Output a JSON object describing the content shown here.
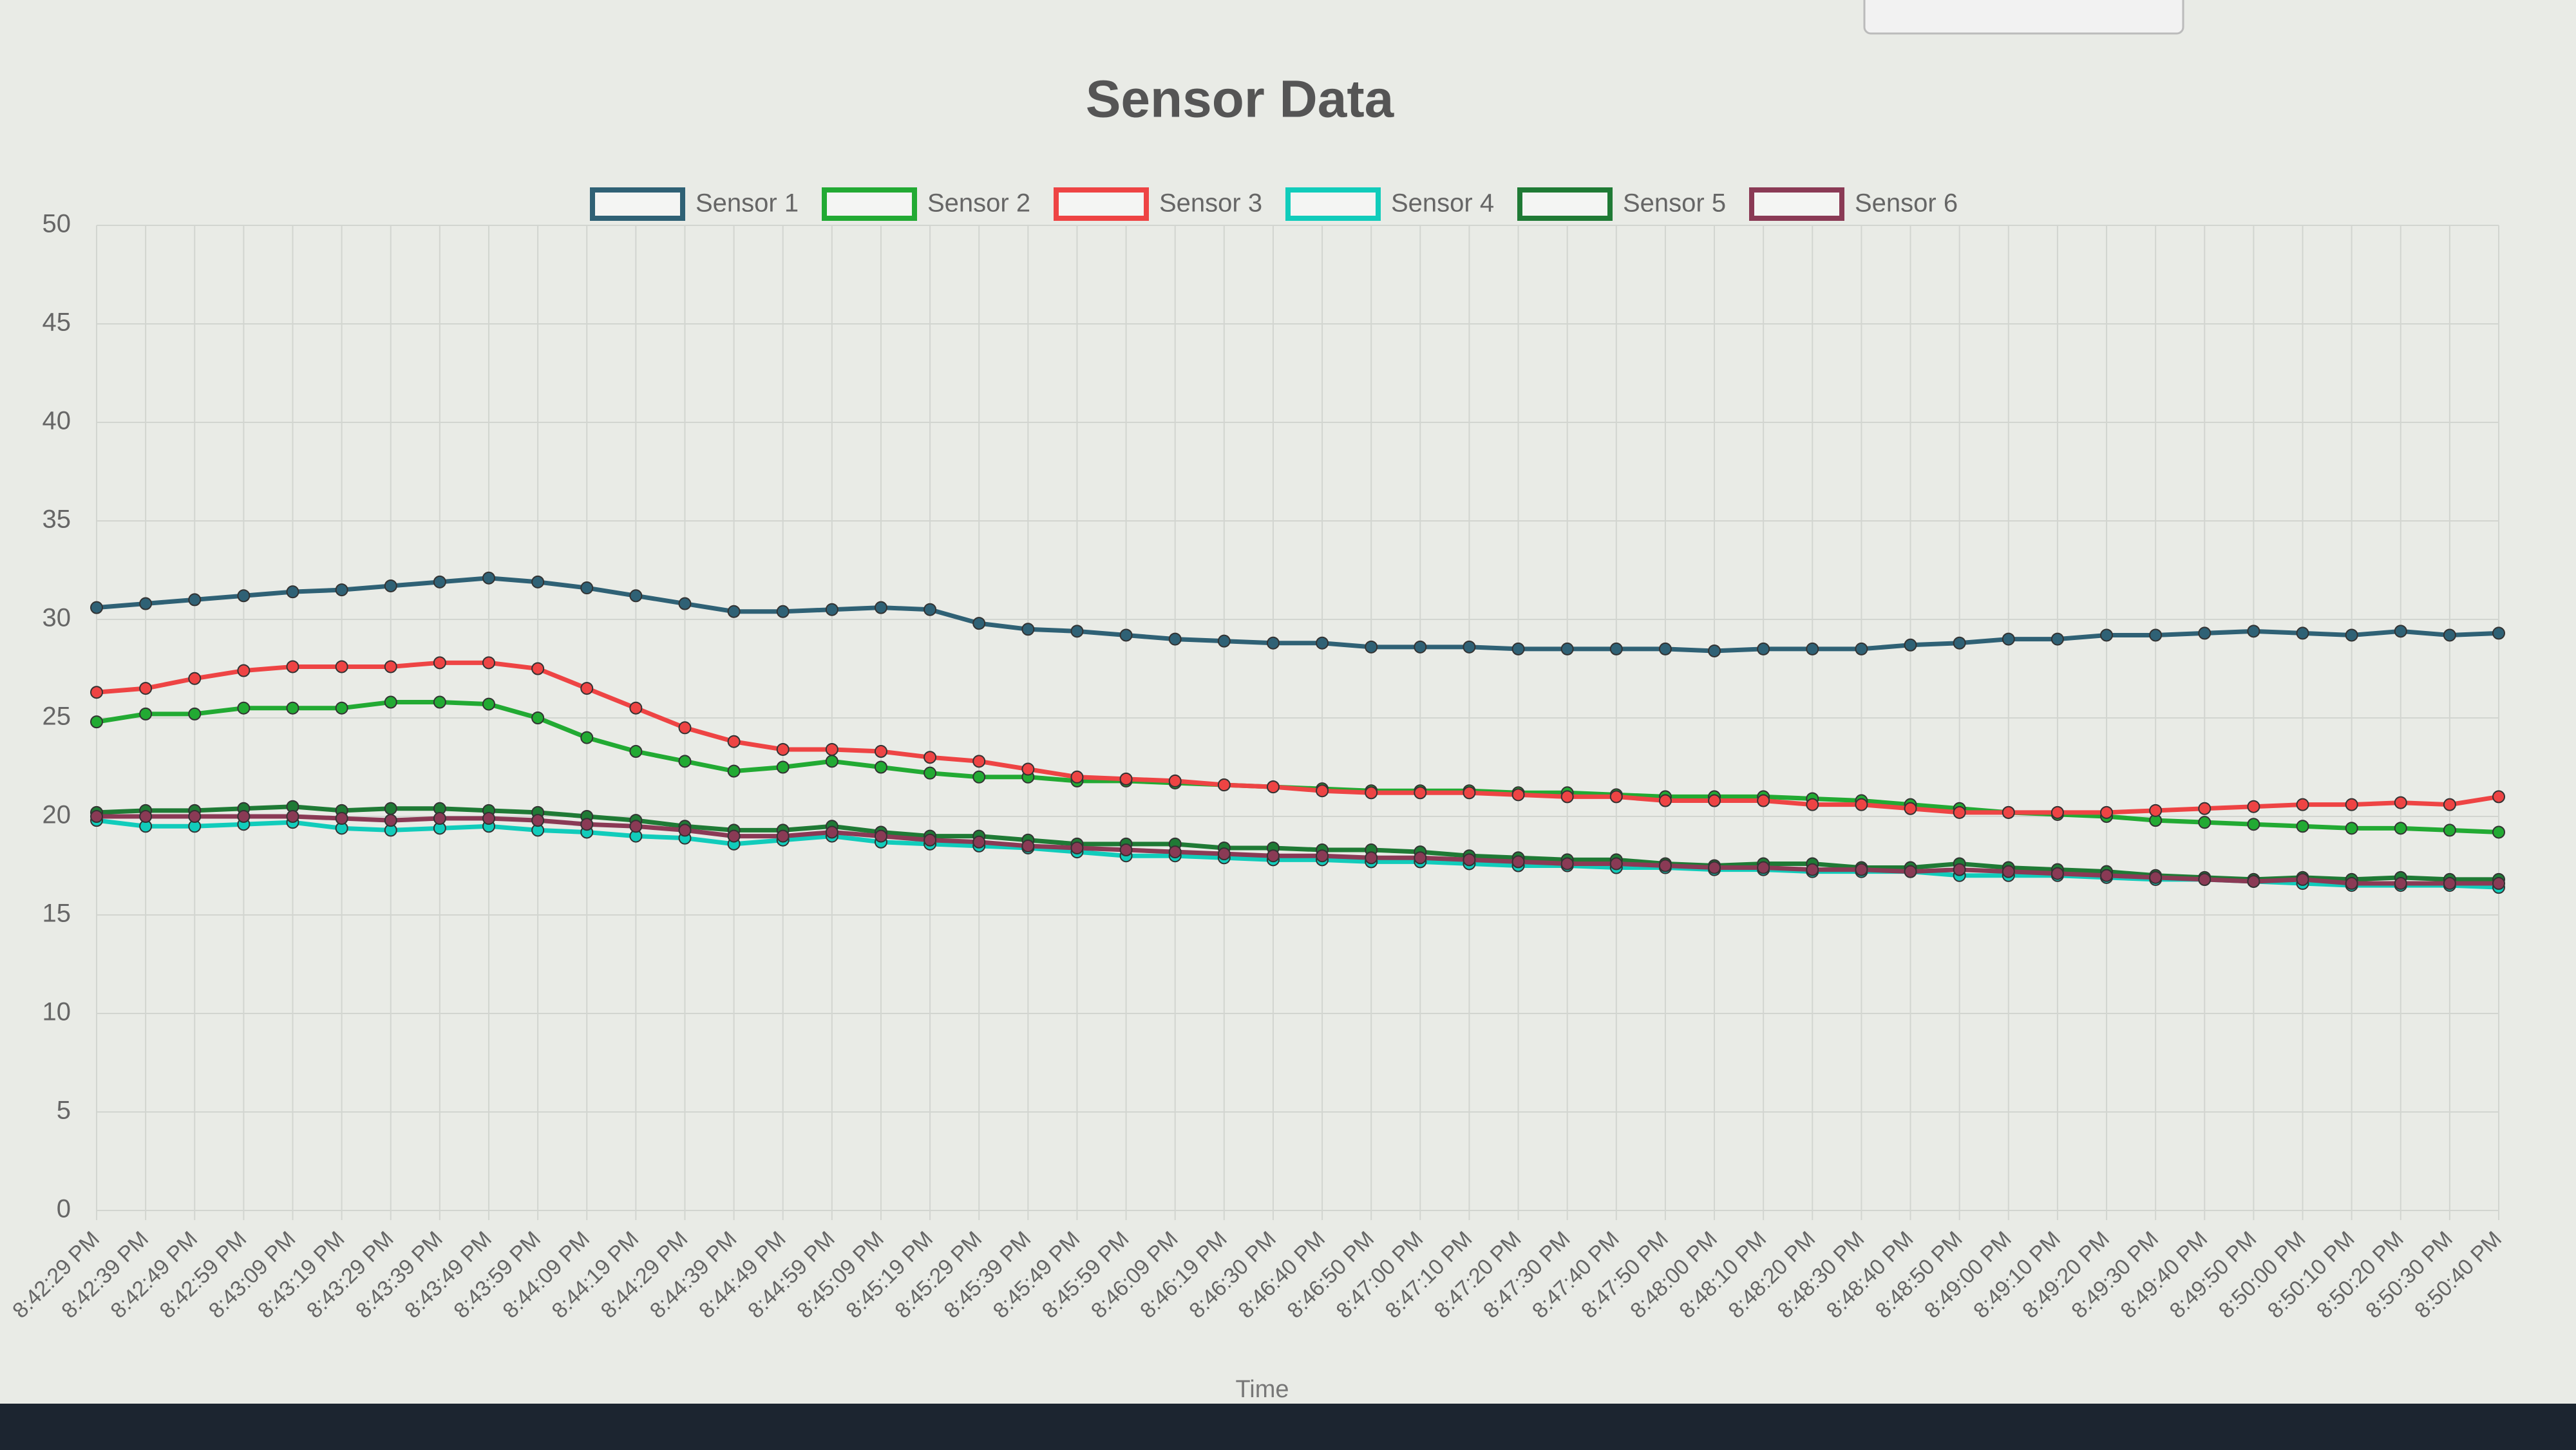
{
  "chart_data": {
    "type": "line",
    "title": "Sensor Data",
    "x_label": "Time",
    "categories": [
      "8:42:29 PM",
      "8:42:39 PM",
      "8:42:49 PM",
      "8:42:59 PM",
      "8:43:09 PM",
      "8:43:19 PM",
      "8:43:29 PM",
      "8:43:39 PM",
      "8:43:49 PM",
      "8:43:59 PM",
      "8:44:09 PM",
      "8:44:19 PM",
      "8:44:29 PM",
      "8:44:39 PM",
      "8:44:49 PM",
      "8:44:59 PM",
      "8:45:09 PM",
      "8:45:19 PM",
      "8:45:29 PM",
      "8:45:39 PM",
      "8:45:49 PM",
      "8:45:59 PM",
      "8:46:09 PM",
      "8:46:19 PM",
      "8:46:30 PM",
      "8:46:40 PM",
      "8:46:50 PM",
      "8:47:00 PM",
      "8:47:10 PM",
      "8:47:20 PM",
      "8:47:30 PM",
      "8:47:40 PM",
      "8:47:50 PM",
      "8:48:00 PM",
      "8:48:10 PM",
      "8:48:20 PM",
      "8:48:30 PM",
      "8:48:40 PM",
      "8:48:50 PM",
      "8:49:00 PM",
      "8:49:10 PM",
      "8:49:20 PM",
      "8:49:30 PM",
      "8:49:40 PM",
      "8:49:50 PM",
      "8:50:00 PM",
      "8:50:10 PM",
      "8:50:20 PM",
      "8:50:30 PM",
      "8:50:40 PM"
    ],
    "series": [
      {
        "name": "Sensor 1",
        "color": "#2f6175",
        "values": [
          30.6,
          30.8,
          31.0,
          31.2,
          31.4,
          31.5,
          31.7,
          31.9,
          32.1,
          31.9,
          31.6,
          31.2,
          30.8,
          30.4,
          30.4,
          30.5,
          30.6,
          30.5,
          29.8,
          29.5,
          29.4,
          29.2,
          29.0,
          28.9,
          28.8,
          28.8,
          28.6,
          28.6,
          28.6,
          28.5,
          28.5,
          28.5,
          28.5,
          28.4,
          28.5,
          28.5,
          28.5,
          28.7,
          28.8,
          29.0,
          29.0,
          29.2,
          29.2,
          29.3,
          29.4,
          29.3,
          29.2,
          29.4,
          29.2,
          29.3
        ]
      },
      {
        "name": "Sensor 2",
        "color": "#22aa33",
        "values": [
          24.8,
          25.2,
          25.2,
          25.5,
          25.5,
          25.5,
          25.8,
          25.8,
          25.7,
          25.0,
          24.0,
          23.3,
          22.8,
          22.3,
          22.5,
          22.8,
          22.5,
          22.2,
          22.0,
          22.0,
          21.8,
          21.8,
          21.7,
          21.6,
          21.5,
          21.4,
          21.3,
          21.3,
          21.3,
          21.2,
          21.2,
          21.1,
          21.0,
          21.0,
          21.0,
          20.9,
          20.8,
          20.6,
          20.4,
          20.2,
          20.1,
          20.0,
          19.8,
          19.7,
          19.6,
          19.5,
          19.4,
          19.4,
          19.3,
          19.2
        ]
      },
      {
        "name": "Sensor 3",
        "color": "#ee4444",
        "values": [
          26.3,
          26.5,
          27.0,
          27.4,
          27.6,
          27.6,
          27.6,
          27.8,
          27.8,
          27.5,
          26.5,
          25.5,
          24.5,
          23.8,
          23.4,
          23.4,
          23.3,
          23.0,
          22.8,
          22.4,
          22.0,
          21.9,
          21.8,
          21.6,
          21.5,
          21.3,
          21.2,
          21.2,
          21.2,
          21.1,
          21.0,
          21.0,
          20.8,
          20.8,
          20.8,
          20.6,
          20.6,
          20.4,
          20.2,
          20.2,
          20.2,
          20.2,
          20.3,
          20.4,
          20.5,
          20.6,
          20.6,
          20.7,
          20.6,
          21.0
        ]
      },
      {
        "name": "Sensor 4",
        "color": "#11ccbb",
        "values": [
          19.8,
          19.5,
          19.5,
          19.6,
          19.7,
          19.4,
          19.3,
          19.4,
          19.5,
          19.3,
          19.2,
          19.0,
          18.9,
          18.6,
          18.8,
          19.0,
          18.7,
          18.6,
          18.5,
          18.4,
          18.2,
          18.0,
          18.0,
          17.9,
          17.8,
          17.8,
          17.7,
          17.7,
          17.6,
          17.5,
          17.5,
          17.4,
          17.4,
          17.3,
          17.3,
          17.2,
          17.2,
          17.2,
          17.0,
          17.0,
          17.0,
          16.9,
          16.8,
          16.8,
          16.7,
          16.6,
          16.5,
          16.5,
          16.5,
          16.4
        ]
      },
      {
        "name": "Sensor 5",
        "color": "#1f7a35",
        "values": [
          20.2,
          20.3,
          20.3,
          20.4,
          20.5,
          20.3,
          20.4,
          20.4,
          20.3,
          20.2,
          20.0,
          19.8,
          19.5,
          19.3,
          19.3,
          19.5,
          19.2,
          19.0,
          19.0,
          18.8,
          18.6,
          18.6,
          18.6,
          18.4,
          18.4,
          18.3,
          18.3,
          18.2,
          18.0,
          17.9,
          17.8,
          17.8,
          17.6,
          17.5,
          17.6,
          17.6,
          17.4,
          17.4,
          17.6,
          17.4,
          17.3,
          17.2,
          17.0,
          16.9,
          16.8,
          16.9,
          16.8,
          16.9,
          16.8,
          16.8
        ]
      },
      {
        "name": "Sensor 6",
        "color": "#8a3a55",
        "values": [
          20.0,
          20.0,
          20.0,
          20.0,
          20.0,
          19.9,
          19.8,
          19.9,
          19.9,
          19.8,
          19.6,
          19.5,
          19.3,
          19.0,
          19.0,
          19.2,
          19.0,
          18.8,
          18.7,
          18.5,
          18.4,
          18.3,
          18.2,
          18.1,
          18.0,
          18.0,
          17.9,
          17.9,
          17.8,
          17.7,
          17.6,
          17.6,
          17.5,
          17.4,
          17.4,
          17.3,
          17.3,
          17.2,
          17.3,
          17.2,
          17.1,
          17.0,
          16.9,
          16.8,
          16.7,
          16.8,
          16.6,
          16.6,
          16.6,
          16.6
        ]
      }
    ],
    "ylim": [
      0,
      50
    ],
    "yticks": [
      0,
      5,
      10,
      15,
      20,
      25,
      30,
      35,
      40,
      45,
      50
    ],
    "grid": true
  }
}
